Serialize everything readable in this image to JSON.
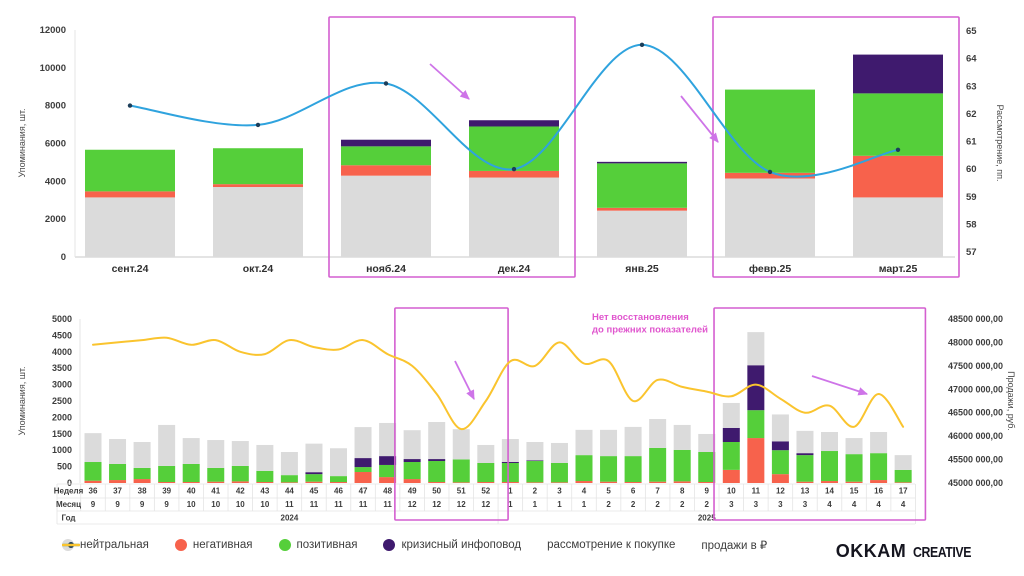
{
  "colors": {
    "neutral": "#DBDBDB",
    "negative": "#F7624C",
    "positive": "#55CF3A",
    "crisis": "#3F1A6E",
    "consideration_line": "#2FA3DE",
    "consideration_dot": "#1C3E5A",
    "sales_line": "#FAC42E",
    "highlight": "#D45FD0",
    "arrow": "#CE74E8",
    "annotation": "#E056CE",
    "axis_text": "#3d3d3d",
    "grid": "#E4E4E4"
  },
  "legend": {
    "items": [
      {
        "label": "нейтральная",
        "marker": "circle",
        "color": "#DBDBDB"
      },
      {
        "label": "негативная",
        "marker": "circle",
        "color": "#F7624C"
      },
      {
        "label": "позитивная",
        "marker": "circle",
        "color": "#55CF3A"
      },
      {
        "label": "кризисный инфоповод",
        "marker": "circle",
        "color": "#3F1A6E"
      },
      {
        "label": "рассмотрение к покупке",
        "marker": "line-dot",
        "color": "#2FA3DE"
      },
      {
        "label": "продажи в ₽",
        "marker": "line",
        "color": "#FAC42E"
      }
    ]
  },
  "logo": {
    "brand": "OKKAM",
    "suffix": "CREATIVE"
  },
  "chart_data": [
    {
      "type": "bar",
      "id": "monthly-mentions-vs-consideration",
      "categories": [
        "сент.24",
        "окт.24",
        "нояб.24",
        "дек.24",
        "янв.25",
        "февр.25",
        "март.25"
      ],
      "series": [
        {
          "name": "нейтральная",
          "color": "#DBDBDB",
          "values": [
            3150,
            3700,
            4300,
            4200,
            2450,
            4150,
            3150
          ]
        },
        {
          "name": "негативная",
          "color": "#F7624C",
          "values": [
            320,
            150,
            550,
            350,
            150,
            300,
            2200
          ]
        },
        {
          "name": "позитивная",
          "color": "#55CF3A",
          "values": [
            2200,
            1900,
            1000,
            2350,
            2350,
            4400,
            3300
          ]
        },
        {
          "name": "кризисный инфоповод",
          "color": "#3F1A6E",
          "values": [
            0,
            0,
            350,
            330,
            80,
            0,
            2050
          ]
        }
      ],
      "line_series": {
        "name": "рассмотрение к покупке",
        "axis": "right",
        "color": "#2FA3DE",
        "values": [
          62.3,
          61.6,
          63.1,
          60.0,
          64.5,
          59.9,
          60.7
        ]
      },
      "left_axis": {
        "label": "Упоминания, шт.",
        "min": 0,
        "max": 12000,
        "step": 2000,
        "ticks": [
          "0",
          "2000",
          "4000",
          "6000",
          "8000",
          "10000",
          "12000"
        ]
      },
      "right_axis": {
        "label": "Рассмотрение, пп.",
        "min": 57,
        "max": 65,
        "step": 1,
        "ticks": [
          "57",
          "58",
          "59",
          "60",
          "61",
          "62",
          "63",
          "64",
          "65"
        ]
      },
      "highlights": [
        {
          "from": "нояб.24",
          "to": "дек.24"
        },
        {
          "from": "февр.25",
          "to": "март.25"
        }
      ]
    },
    {
      "type": "bar",
      "id": "weekly-mentions-vs-sales",
      "row_headers": [
        "Неделя",
        "Месяц",
        "Год"
      ],
      "weeks": [
        "36",
        "37",
        "38",
        "39",
        "40",
        "41",
        "42",
        "43",
        "44",
        "45",
        "46",
        "47",
        "48",
        "49",
        "50",
        "51",
        "52",
        "1",
        "2",
        "3",
        "4",
        "5",
        "6",
        "7",
        "8",
        "9",
        "10",
        "11",
        "12",
        "13",
        "14",
        "15",
        "16",
        "17"
      ],
      "months": [
        "9",
        "9",
        "9",
        "9",
        "10",
        "10",
        "10",
        "10",
        "11",
        "11",
        "11",
        "11",
        "11",
        "12",
        "12",
        "12",
        "12",
        "1",
        "1",
        "1",
        "1",
        "2",
        "2",
        "2",
        "2",
        "2",
        "3",
        "3",
        "3",
        "3",
        "4",
        "4",
        "4",
        "4"
      ],
      "years": [
        {
          "label": "2024",
          "weeks": 17
        },
        {
          "label": "2025",
          "weeks": 17
        }
      ],
      "series": [
        {
          "name": "негативная",
          "color": "#F7624C",
          "values": [
            70,
            90,
            120,
            30,
            30,
            40,
            50,
            30,
            20,
            40,
            30,
            335,
            180,
            120,
            30,
            20,
            30,
            30,
            20,
            20,
            60,
            40,
            30,
            40,
            50,
            30,
            400,
            1370,
            270,
            40,
            60,
            40,
            90,
            20
          ]
        },
        {
          "name": "позитивная",
          "color": "#55CF3A",
          "values": [
            570,
            490,
            340,
            490,
            550,
            420,
            470,
            340,
            220,
            230,
            180,
            150,
            370,
            520,
            640,
            700,
            580,
            580,
            650,
            590,
            790,
            780,
            790,
            1030,
            960,
            915,
            850,
            850,
            730,
            810,
            915,
            840,
            820,
            380
          ]
        },
        {
          "name": "кризисный инфоповод",
          "color": "#3F1A6E",
          "values": [
            0,
            0,
            0,
            0,
            0,
            0,
            0,
            0,
            0,
            60,
            0,
            275,
            270,
            90,
            60,
            0,
            0,
            30,
            20,
            0,
            0,
            0,
            0,
            0,
            0,
            0,
            430,
            1370,
            270,
            60,
            0,
            0,
            0,
            0
          ]
        },
        {
          "name": "нейтральная",
          "color": "#DBDBDB",
          "values": [
            880,
            760,
            790,
            1250,
            790,
            850,
            760,
            790,
            705,
            870,
            850,
            945,
            1010,
            880,
            1130,
            920,
            550,
            700,
            560,
            610,
            770,
            800,
            890,
            880,
            760,
            550,
            760,
            1010,
            820,
            680,
            580,
            490,
            645,
            450
          ]
        }
      ],
      "line_series": {
        "name": "продажи в ₽",
        "axis": "right",
        "color": "#FAC42E",
        "values": [
          47950000,
          48000000,
          48050000,
          48100000,
          47950000,
          48050000,
          47800000,
          47750000,
          48050000,
          47900000,
          47850000,
          48050000,
          47750000,
          47500000,
          46900000,
          46150000,
          46750000,
          47600000,
          47500000,
          48000000,
          47550000,
          47600000,
          46750000,
          47200000,
          47050000,
          46950000,
          46850000,
          47100000,
          46800000,
          46500000,
          46650000,
          46200000,
          46900000,
          46200000
        ]
      },
      "left_axis": {
        "label": "Упоминания, шт.",
        "min": 0,
        "max": 5000,
        "step": 500,
        "ticks": [
          "0",
          "500",
          "1000",
          "1500",
          "2000",
          "2500",
          "3000",
          "3500",
          "4000",
          "4500",
          "5000"
        ]
      },
      "right_axis": {
        "label": "Продажи, руб.",
        "min": 45000000,
        "max": 48500000,
        "step": 500000,
        "ticks": [
          "45000 000,00",
          "45500 000,00",
          "46000 000,00",
          "46500 000,00",
          "47000 000,00",
          "47500 000,00",
          "48000 000,00",
          "48500 000,00"
        ]
      },
      "highlights": [
        {
          "from": "49",
          "to": "52",
          "year": "2024"
        },
        {
          "from": "10",
          "to": "17",
          "year": "2025"
        }
      ],
      "annotation": {
        "lines": [
          "Нет восстановления",
          "до прежних показателей"
        ]
      }
    }
  ]
}
